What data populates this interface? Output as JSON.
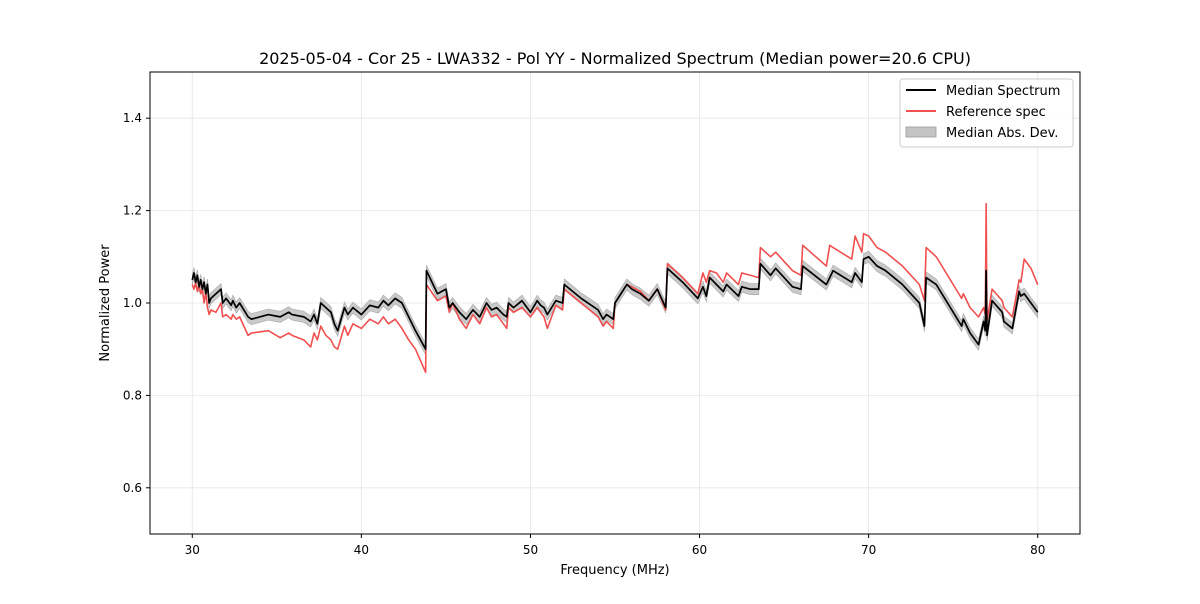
{
  "chart_data": {
    "type": "line",
    "title": "2025-05-04 - Cor 25 - LWA332 - Pol YY - Normalized Spectrum (Median power=20.6 CPU)",
    "xlabel": "Frequency (MHz)",
    "ylabel": "Normalized Power",
    "xlim": [
      27.5,
      82.5
    ],
    "ylim": [
      0.5,
      1.5
    ],
    "xticks": [
      30,
      40,
      50,
      60,
      70,
      80
    ],
    "yticks": [
      0.6,
      0.8,
      1.0,
      1.2,
      1.4
    ],
    "xtick_labels": [
      "30",
      "40",
      "50",
      "60",
      "70",
      "80"
    ],
    "ytick_labels": [
      "0.6",
      "0.8",
      "1.0",
      "1.2",
      "1.4"
    ],
    "grid": true,
    "legend_position": "top-right",
    "legend": [
      "Median Spectrum",
      "Reference spec",
      "Median Abs. Dev."
    ],
    "colors": {
      "median": "#000000",
      "reference": "#f05050",
      "mad_fill": "#bfbfbf"
    },
    "mad_halfwidth": 0.012,
    "series": [
      {
        "name": "Median Spectrum",
        "x": [
          30.0,
          30.1,
          30.2,
          30.3,
          30.4,
          30.5,
          30.6,
          30.7,
          30.8,
          30.9,
          31.0,
          31.1,
          31.4,
          31.7,
          31.8,
          32.0,
          32.3,
          32.4,
          32.6,
          32.8,
          33.3,
          33.5,
          34.5,
          35.2,
          35.7,
          35.9,
          36.6,
          37.0,
          37.2,
          37.4,
          37.6,
          37.9,
          38.2,
          38.4,
          38.6,
          39.0,
          39.2,
          39.5,
          40.0,
          40.5,
          41.0,
          41.3,
          41.6,
          42.0,
          42.4,
          42.8,
          43.2,
          43.8,
          43.85,
          44.5,
          45.0,
          45.2,
          45.4,
          45.8,
          46.2,
          46.6,
          47.0,
          47.4,
          47.7,
          48.0,
          48.4,
          48.6,
          48.7,
          49.0,
          49.5,
          50.0,
          50.4,
          50.6,
          50.8,
          51.0,
          51.5,
          51.9,
          52.0,
          53.0,
          54.0,
          54.3,
          54.5,
          54.9,
          55.0,
          55.7,
          56.0,
          56.5,
          57.0,
          57.5,
          58.0,
          58.1,
          59.0,
          59.9,
          60.2,
          60.4,
          60.6,
          61.0,
          61.4,
          61.6,
          62.3,
          62.5,
          63.0,
          63.5,
          63.6,
          64.2,
          64.5,
          65.5,
          66.0,
          66.1,
          67.5,
          67.7,
          67.9,
          69.0,
          69.2,
          69.6,
          69.7,
          70.0,
          70.5,
          71.0,
          72.0,
          73.0,
          73.3,
          73.4,
          74.0,
          75.0,
          75.5,
          75.6,
          76.0,
          76.5,
          76.8,
          76.9,
          76.95,
          77.0,
          77.3,
          77.9,
          78.0,
          78.5,
          78.9,
          79.0,
          79.2,
          79.6,
          80.0
        ],
        "y": [
          1.05,
          1.065,
          1.045,
          1.06,
          1.035,
          1.05,
          1.03,
          1.045,
          1.02,
          1.04,
          1.0,
          1.01,
          1.02,
          1.03,
          1.0,
          1.01,
          0.995,
          1.005,
          0.99,
          1.0,
          0.97,
          0.965,
          0.975,
          0.97,
          0.98,
          0.975,
          0.97,
          0.96,
          0.975,
          0.955,
          1.0,
          0.99,
          0.98,
          0.955,
          0.94,
          0.99,
          0.975,
          0.99,
          0.975,
          0.995,
          0.99,
          1.005,
          0.995,
          1.01,
          1.0,
          0.97,
          0.94,
          0.9,
          1.07,
          1.02,
          1.03,
          0.99,
          1.0,
          0.98,
          0.965,
          0.985,
          0.97,
          1.0,
          0.985,
          0.99,
          0.975,
          0.97,
          1.0,
          0.99,
          1.005,
          0.98,
          1.005,
          0.995,
          0.99,
          0.975,
          1.005,
          1.0,
          1.04,
          1.01,
          0.985,
          0.965,
          0.975,
          0.965,
          1.0,
          1.04,
          1.03,
          1.02,
          1.005,
          1.03,
          0.99,
          1.075,
          1.045,
          1.01,
          1.035,
          1.015,
          1.055,
          1.04,
          1.025,
          1.04,
          1.015,
          1.035,
          1.03,
          1.03,
          1.085,
          1.06,
          1.075,
          1.035,
          1.03,
          1.08,
          1.04,
          1.055,
          1.07,
          1.045,
          1.065,
          1.045,
          1.095,
          1.1,
          1.08,
          1.07,
          1.04,
          1.0,
          0.95,
          1.055,
          1.04,
          0.98,
          0.95,
          0.965,
          0.935,
          0.91,
          0.96,
          0.94,
          1.07,
          0.93,
          1.005,
          0.98,
          0.96,
          0.945,
          1.025,
          1.015,
          1.02,
          1.0,
          0.98
        ]
      },
      {
        "name": "Reference spec",
        "x": [
          30.0,
          30.1,
          30.2,
          30.3,
          30.4,
          30.5,
          30.6,
          30.7,
          30.8,
          30.9,
          31.0,
          31.1,
          31.4,
          31.7,
          31.8,
          32.0,
          32.3,
          32.4,
          32.6,
          32.8,
          33.3,
          33.5,
          34.5,
          35.2,
          35.7,
          35.9,
          36.6,
          37.0,
          37.2,
          37.4,
          37.6,
          37.9,
          38.2,
          38.4,
          38.6,
          39.0,
          39.2,
          39.5,
          40.0,
          40.5,
          41.0,
          41.3,
          41.6,
          42.0,
          42.4,
          42.8,
          43.2,
          43.8,
          43.85,
          44.5,
          45.0,
          45.2,
          45.4,
          45.8,
          46.2,
          46.6,
          47.0,
          47.4,
          47.7,
          48.0,
          48.4,
          48.6,
          48.7,
          49.0,
          49.5,
          50.0,
          50.4,
          50.6,
          50.8,
          51.0,
          51.5,
          51.9,
          52.0,
          53.0,
          54.0,
          54.3,
          54.5,
          54.9,
          55.0,
          55.7,
          56.0,
          56.5,
          57.0,
          57.5,
          58.0,
          58.1,
          59.0,
          59.9,
          60.2,
          60.4,
          60.6,
          61.0,
          61.4,
          61.6,
          62.3,
          62.5,
          63.0,
          63.5,
          63.6,
          64.2,
          64.5,
          65.5,
          66.0,
          66.1,
          67.5,
          67.7,
          67.9,
          69.0,
          69.2,
          69.6,
          69.7,
          70.0,
          70.5,
          71.0,
          72.0,
          73.0,
          73.3,
          73.4,
          74.0,
          75.0,
          75.5,
          75.6,
          76.0,
          76.5,
          76.8,
          76.9,
          76.95,
          77.0,
          77.3,
          77.9,
          78.0,
          78.5,
          78.9,
          79.0,
          79.2,
          79.6,
          80.0
        ],
        "y": [
          1.04,
          1.03,
          1.045,
          1.025,
          1.04,
          1.02,
          1.03,
          1.0,
          1.025,
          0.99,
          0.975,
          0.985,
          0.98,
          1.0,
          0.97,
          0.975,
          0.965,
          0.975,
          0.965,
          0.97,
          0.93,
          0.935,
          0.94,
          0.925,
          0.935,
          0.93,
          0.92,
          0.905,
          0.935,
          0.92,
          0.95,
          0.93,
          0.92,
          0.905,
          0.9,
          0.95,
          0.93,
          0.955,
          0.945,
          0.965,
          0.955,
          0.97,
          0.955,
          0.965,
          0.945,
          0.92,
          0.9,
          0.85,
          1.04,
          1.005,
          1.015,
          0.98,
          1.0,
          0.965,
          0.945,
          0.975,
          0.955,
          0.99,
          0.97,
          0.975,
          0.955,
          0.945,
          0.99,
          0.98,
          0.99,
          0.97,
          0.99,
          0.98,
          0.97,
          0.945,
          0.995,
          0.985,
          1.03,
          1.0,
          0.97,
          0.95,
          0.96,
          0.945,
          1.0,
          1.04,
          1.035,
          1.025,
          1.005,
          1.03,
          0.985,
          1.085,
          1.055,
          1.02,
          1.065,
          1.045,
          1.07,
          1.065,
          1.045,
          1.065,
          1.04,
          1.065,
          1.06,
          1.055,
          1.12,
          1.1,
          1.11,
          1.07,
          1.06,
          1.125,
          1.08,
          1.125,
          1.12,
          1.095,
          1.145,
          1.11,
          1.15,
          1.145,
          1.12,
          1.11,
          1.08,
          1.04,
          1.005,
          1.12,
          1.1,
          1.04,
          1.01,
          1.02,
          0.99,
          0.97,
          0.99,
          0.975,
          1.215,
          0.96,
          1.03,
          1.005,
          0.99,
          0.97,
          1.05,
          1.045,
          1.095,
          1.075,
          1.04
        ]
      }
    ]
  }
}
